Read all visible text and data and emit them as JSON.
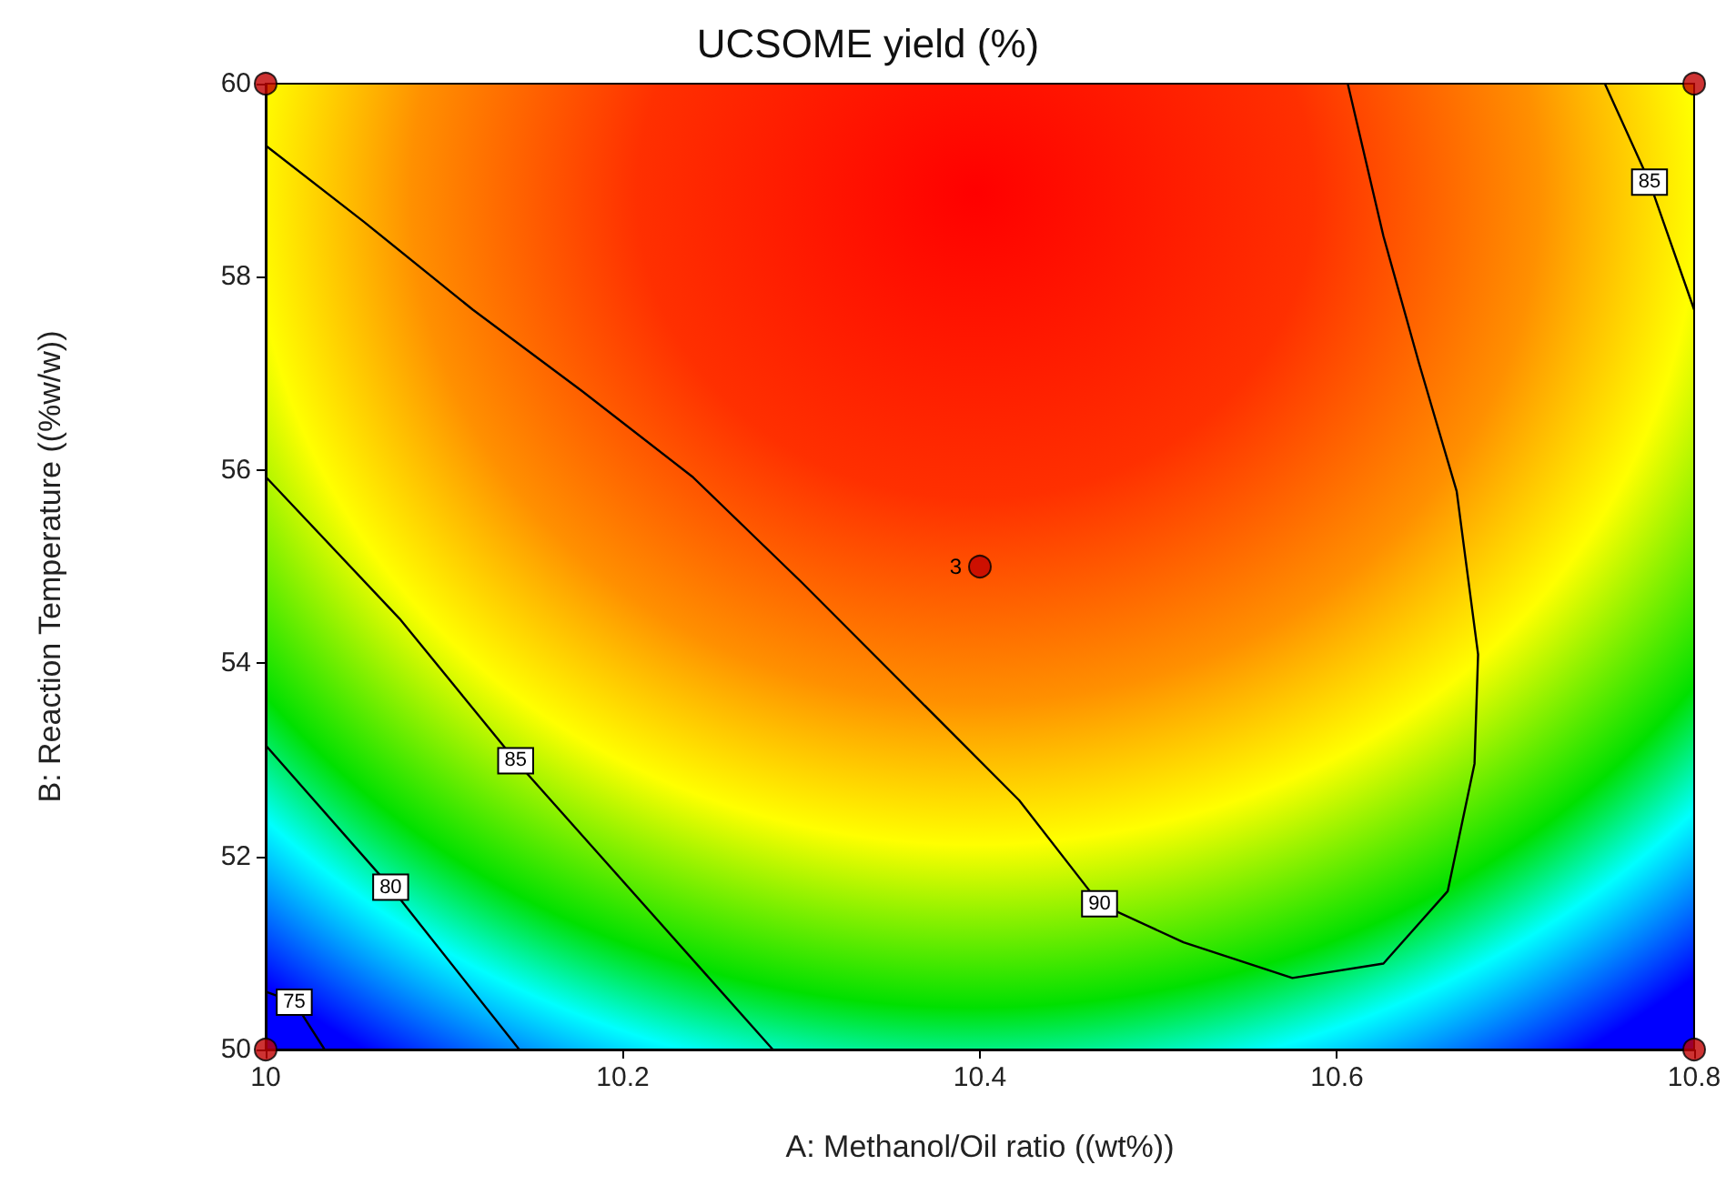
{
  "chart_data": {
    "type": "line",
    "title": "UCSOME yield (%)",
    "xlabel": "A: Methanol/Oil ratio ((wt%))",
    "ylabel": "B: Reaction Temperature ((%w/w))",
    "xlim": [
      10,
      10.8
    ],
    "xticks": [
      10,
      10.2,
      10.4,
      10.6,
      10.8
    ],
    "ylim": [
      50,
      60
    ],
    "yticks": [
      50,
      52,
      54,
      56,
      58,
      60
    ],
    "grid": false,
    "line_style": "solid",
    "series": [
      {
        "color": "#000000",
        "x": [
          10,
          10.055,
          10.116,
          10.177,
          10.239,
          10.3,
          10.361,
          10.422,
          10.467,
          10.514,
          10.575,
          10.626,
          10.662,
          10.677,
          10.679,
          10.667,
          10.646,
          10.626,
          10.606
        ],
        "values": [
          59.36,
          58.57,
          57.66,
          56.82,
          55.93,
          54.84,
          53.71,
          52.58,
          51.51,
          51.11,
          50.74,
          50.89,
          51.64,
          52.96,
          54.09,
          55.78,
          57.1,
          58.42,
          60
        ]
      },
      {
        "color": "#000000",
        "x": [
          10,
          10.075,
          10.14,
          10.284
        ],
        "values": [
          55.93,
          54.46,
          52.99,
          50
        ]
      },
      {
        "color": "#000000",
        "x": [
          10.75,
          10.775,
          10.8
        ],
        "values": [
          60,
          58.98,
          57.66
        ]
      },
      {
        "color": "#000000",
        "x": [
          10,
          10.07,
          10.142
        ],
        "values": [
          53.15,
          51.68,
          50
        ]
      },
      {
        "color": "#000000",
        "x": [
          10,
          10.016,
          10.033
        ],
        "values": [
          50.6,
          50.49,
          50
        ]
      },
      {
        "type": "scatter",
        "color": "#c00000",
        "marker": "circle",
        "x": [
          10,
          10,
          10.8,
          10.8,
          10.4
        ],
        "values": [
          50,
          60,
          50,
          60,
          55
        ]
      }
    ],
    "annotations": [
      {
        "text": "90",
        "x": 10.467,
        "y": 51.51
      },
      {
        "text": "85",
        "x": 10.14,
        "y": 52.99
      },
      {
        "text": "85",
        "x": 10.775,
        "y": 58.98
      },
      {
        "text": "80",
        "x": 10.07,
        "y": 51.68
      },
      {
        "text": "75",
        "x": 10.016,
        "y": 50.49
      },
      {
        "text": "3",
        "x": 10.4,
        "y": 55
      }
    ]
  }
}
